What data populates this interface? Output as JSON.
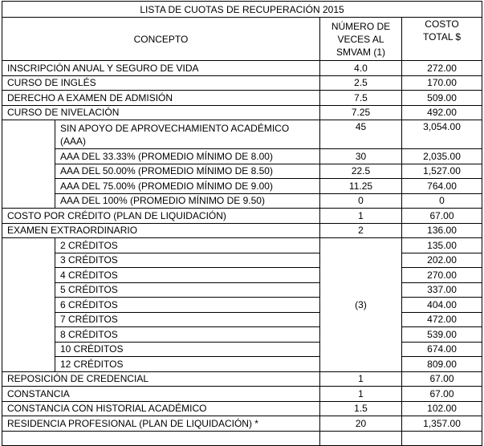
{
  "title": "LISTA DE CUOTAS DE RECUPERACIÓN 2015",
  "headers": {
    "concept": "CONCEPTO",
    "times": "NÚMERO DE VECES AL SMVAM (1)",
    "cost": "COSTO TOTAL $"
  },
  "rows_main": [
    {
      "concept": "INSCRIPCIÓN ANUAL Y SEGURO DE VIDA",
      "times": "4.0",
      "cost": "272.00"
    },
    {
      "concept": "CURSO DE INGLÉS",
      "times": "2.5",
      "cost": "170.00"
    },
    {
      "concept": "DERECHO A EXAMEN DE ADMISIÓN",
      "times": "7.5",
      "cost": "509.00"
    },
    {
      "concept": "CURSO DE NIVELACIÓN",
      "times": "7.25",
      "cost": "492.00"
    }
  ],
  "nivelacion_sub": [
    {
      "concept": "SIN APOYO DE APROVECHAMIENTO ACADÉMICO (AAA)",
      "times": "45",
      "cost": "3,054.00"
    },
    {
      "concept": "AAA DEL 33.33%  (PROMEDIO MÍNIMO DE 8.00)",
      "times": "30",
      "cost": "2,035.00"
    },
    {
      "concept": "AAA DEL 50.00%  (PROMEDIO MÍNIMO DE 8.50)",
      "times": "22.5",
      "cost": "1,527.00"
    },
    {
      "concept": "AAA DEL 75.00%  (PROMEDIO MÍNIMO DE 9.00)",
      "times": "11.25",
      "cost": "764.00"
    },
    {
      "concept": "AAA DEL 100%     (PROMEDIO MÍNIMO DE 9.50)",
      "times": "0",
      "cost": "0"
    }
  ],
  "rows_mid": [
    {
      "concept": "COSTO POR CRÉDITO (PLAN DE LIQUIDACIÓN)",
      "times": "1",
      "cost": "67.00"
    },
    {
      "concept": "EXAMEN EXTRAORDINARIO",
      "times": "2",
      "cost": "136.00"
    }
  ],
  "extra_times": "(3)",
  "extra_sub": [
    {
      "concept": "2 CRÉDITOS",
      "cost": "135.00"
    },
    {
      "concept": "3 CRÉDITOS",
      "cost": "202.00"
    },
    {
      "concept": "4 CRÉDITOS",
      "cost": "270.00"
    },
    {
      "concept": "5 CRÉDITOS",
      "cost": "337.00"
    },
    {
      "concept": "6 CRÉDITOS",
      "cost": "404.00"
    },
    {
      "concept": "7 CRÉDITOS",
      "cost": "472.00"
    },
    {
      "concept": "8 CRÉDITOS",
      "cost": "539.00"
    },
    {
      "concept": "10 CRÉDITOS",
      "cost": "674.00"
    },
    {
      "concept": "12 CRÉDITOS",
      "cost": "809.00"
    }
  ],
  "rows_end": [
    {
      "concept": "REPOSICIÓN DE CREDENCIAL",
      "times": "1",
      "cost": "67.00"
    },
    {
      "concept": "CONSTANCIA",
      "times": "1",
      "cost": "67.00"
    },
    {
      "concept": "CONSTANCIA CON HISTORIAL  ACADÉMICO",
      "times": "1.5",
      "cost": "102.00"
    },
    {
      "concept": "RESIDENCIA PROFESIONAL (PLAN DE LIQUIDACIÓN) *",
      "times": "20",
      "cost": "1,357.00"
    },
    {
      "concept": "",
      "times": "",
      "cost": ""
    }
  ]
}
